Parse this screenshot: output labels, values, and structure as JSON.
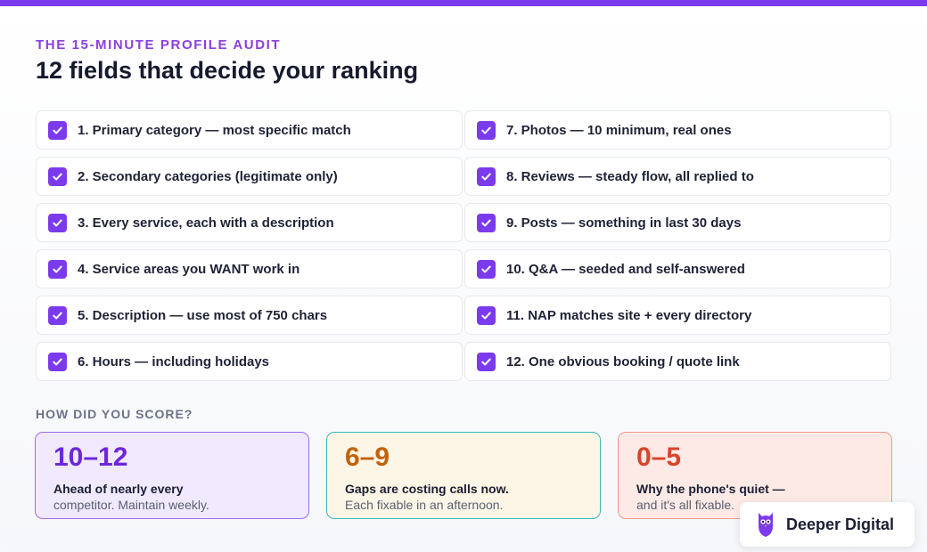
{
  "eyebrow": "THE 15-MINUTE PROFILE AUDIT",
  "title": "12 fields that decide your ranking",
  "checklist": [
    {
      "label": "1. Primary category — most specific match",
      "checked": true
    },
    {
      "label": "7. Photos — 10 minimum, real ones",
      "checked": true
    },
    {
      "label": "2. Secondary categories (legitimate only)",
      "checked": true
    },
    {
      "label": "8. Reviews — steady flow, all replied to",
      "checked": true
    },
    {
      "label": "3. Every service, each with a description",
      "checked": true
    },
    {
      "label": "9. Posts — something in last 30 days",
      "checked": true
    },
    {
      "label": "4. Service areas you WANT work in",
      "checked": true
    },
    {
      "label": "10. Q&A — seeded and self-answered",
      "checked": true
    },
    {
      "label": "5. Description — use most of 750 chars",
      "checked": true
    },
    {
      "label": "11. NAP matches site + every directory",
      "checked": true
    },
    {
      "label": "6. Hours — including holidays",
      "checked": true
    },
    {
      "label": "12. One obvious booking / quote link",
      "checked": true
    }
  ],
  "score_heading": "HOW DID YOU SCORE?",
  "scores": [
    {
      "range": "10–12",
      "line1": "Ahead of nearly every",
      "line2": "competitor. Maintain weekly."
    },
    {
      "range": "6–9",
      "line1": "Gaps are costing calls now.",
      "line2": "Each fixable in an afternoon."
    },
    {
      "range": "0–5",
      "line1": "Why the phone's quiet —",
      "line2": "and it's all fixable."
    }
  ],
  "brand": {
    "name": "Deeper Digital",
    "icon": "owl-logo-icon"
  },
  "colors": {
    "accent": "#7c3aed",
    "text": "#161a2e"
  }
}
